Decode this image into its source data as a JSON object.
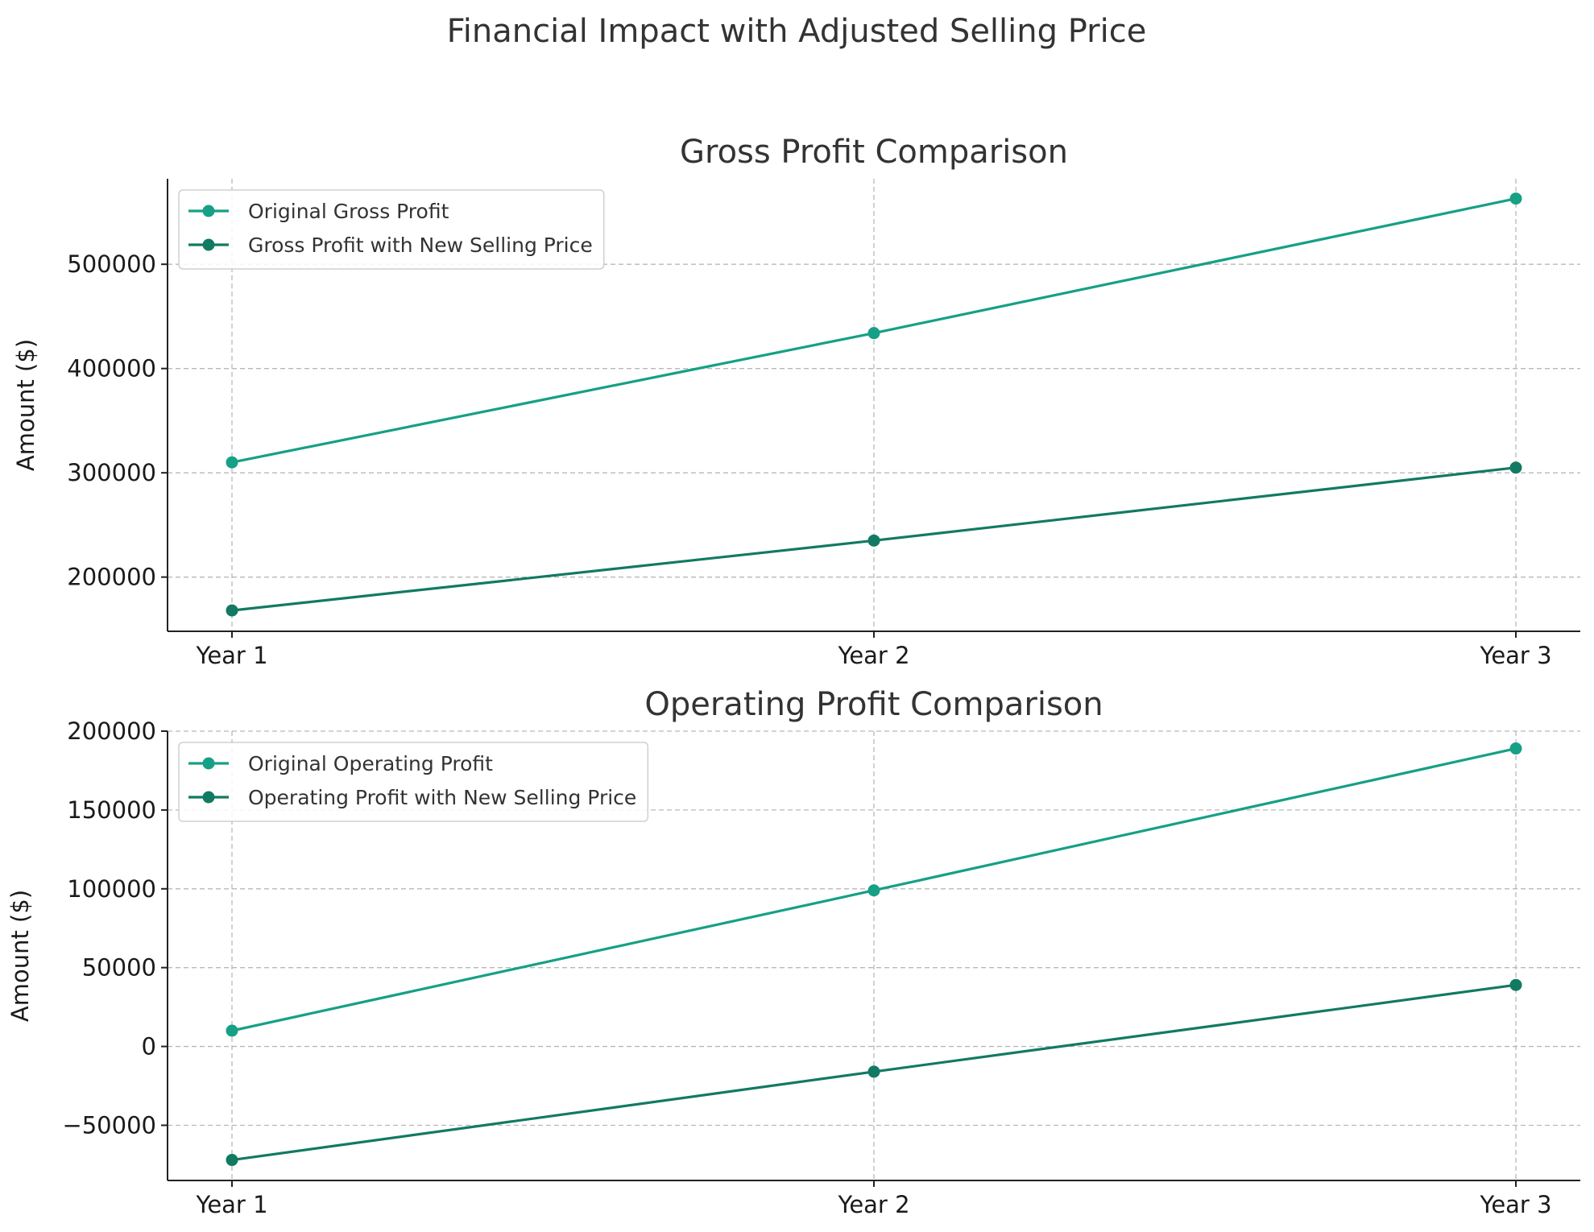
{
  "figure": {
    "title": "Financial Impact with Adjusted Selling Price"
  },
  "chart_data": [
    {
      "type": "line",
      "title": "Gross Profit Comparison",
      "xlabel": "",
      "ylabel": "Amount ($)",
      "categories": [
        "Year 1",
        "Year 2",
        "Year 3"
      ],
      "ylim": [
        148000,
        582000
      ],
      "yticks": [
        200000,
        300000,
        400000,
        500000
      ],
      "ytick_labels": [
        "200000",
        "300000",
        "400000",
        "500000"
      ],
      "grid": true,
      "legend_position": "upper-left",
      "series": [
        {
          "name": "Original Gross Profit",
          "values": [
            310000,
            434000,
            563000
          ],
          "color": "#16a085"
        },
        {
          "name": "Gross Profit with New Selling Price",
          "values": [
            168000,
            235000,
            305000
          ],
          "color": "#127a62"
        }
      ]
    },
    {
      "type": "line",
      "title": "Operating Profit Comparison",
      "xlabel": "",
      "ylabel": "Amount ($)",
      "categories": [
        "Year 1",
        "Year 2",
        "Year 3"
      ],
      "ylim": [
        -85000,
        200000
      ],
      "yticks": [
        -50000,
        0,
        50000,
        100000,
        150000,
        200000
      ],
      "ytick_labels": [
        "−50000",
        "0",
        "50000",
        "100000",
        "150000",
        "200000"
      ],
      "grid": true,
      "legend_position": "upper-left",
      "series": [
        {
          "name": "Original Operating Profit",
          "values": [
            10000,
            99000,
            189000
          ],
          "color": "#16a085"
        },
        {
          "name": "Operating Profit with New Selling Price",
          "values": [
            -72000,
            -16000,
            39000
          ],
          "color": "#127a62"
        }
      ]
    }
  ]
}
